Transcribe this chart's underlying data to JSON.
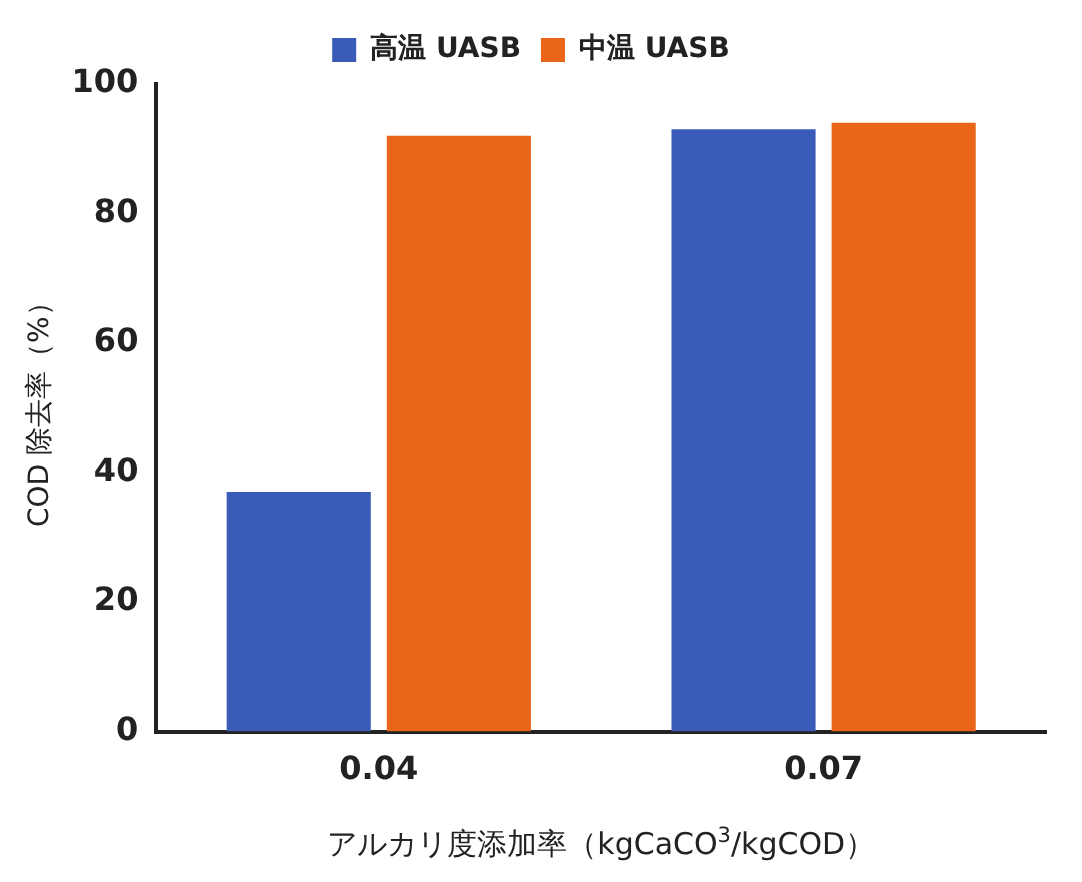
{
  "chart_data": {
    "type": "bar",
    "xlabel": "アルカリ度添加率（kgCaCO$^{3}$/kgCOD）",
    "ylabel": "COD 除去率（%）",
    "categories": [
      "0.04",
      "0.07"
    ],
    "series": [
      {
        "name": "高温 UASB",
        "color": "#3a5cb8",
        "values": [
          37,
          93
        ]
      },
      {
        "name": "中温 UASB",
        "color": "#e8651a",
        "values": [
          92,
          94
        ]
      }
    ],
    "ylim": [
      0,
      100
    ],
    "yticks": [
      0,
      20,
      40,
      60,
      80,
      100
    ],
    "grid": false,
    "legend": "top"
  }
}
